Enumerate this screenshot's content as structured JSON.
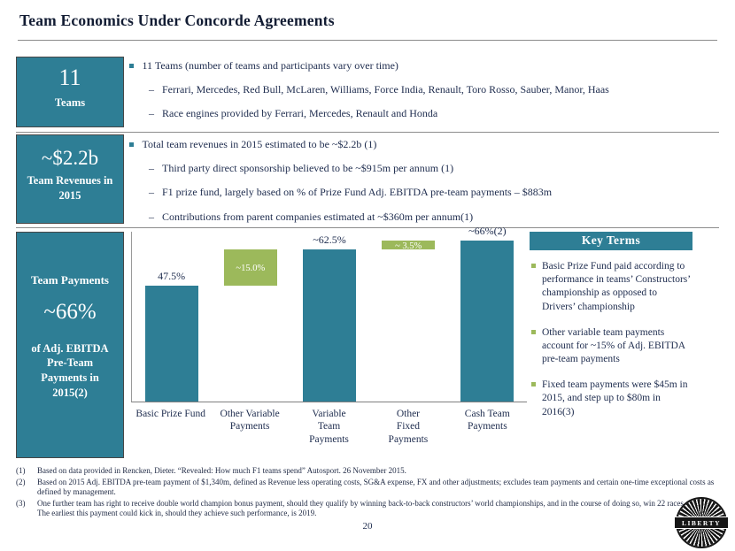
{
  "title": "Team Economics Under Concorde Agreements",
  "page_number": "20",
  "colors": {
    "teal": "#2e7e95",
    "green": "#9cb95b",
    "text": "#1e2c4e"
  },
  "rows": [
    {
      "box": {
        "value": "11",
        "caption": "Teams"
      },
      "bullet": "11 Teams (number of teams and participants vary over time)",
      "subbullets": [
        "Ferrari, Mercedes, Red Bull, McLaren, Williams, Force India, Renault, Toro Rosso, Sauber, Manor, Haas",
        "Race engines provided by Ferrari, Mercedes, Renault and Honda"
      ]
    },
    {
      "box": {
        "value": "~$2.2b",
        "caption": "Team Revenues in 2015"
      },
      "bullet": "Total team revenues in 2015 estimated to be ~$2.2b (1)",
      "subbullets": [
        "Third party direct sponsorship believed to be ~$915m per annum (1)",
        "F1 prize fund, largely based on % of Prize Fund Adj. EBITDA pre-team payments – $883m",
        "Contributions from parent companies estimated at ~$360m per annum(1)"
      ]
    },
    {
      "box": {
        "title": "Team Payments",
        "value": "~66%",
        "caption": "of Adj. EBITDA Pre-Team Payments in 2015(2)"
      }
    }
  ],
  "chart_data": {
    "type": "bar",
    "subtype": "waterfall",
    "ylim": [
      0,
      70
    ],
    "grid": false,
    "categories": [
      "Basic Prize Fund",
      "Other Variable\nPayments",
      "Variable\nTeam\nPayments",
      "Other\nFixed\nPayments",
      "Cash Team\nPayments"
    ],
    "bars": [
      {
        "label": "47.5%",
        "start": 0,
        "value": 47.5,
        "color": "teal",
        "label_pos": "above"
      },
      {
        "label": "~15.0%",
        "start": 47.5,
        "value": 15.0,
        "color": "green",
        "label_pos": "inside"
      },
      {
        "label": "~62.5%",
        "start": 0,
        "value": 62.5,
        "color": "teal",
        "label_pos": "above"
      },
      {
        "label": "~ 3.5%",
        "start": 62.5,
        "value": 3.5,
        "color": "green",
        "label_pos": "inside"
      },
      {
        "label": "~66%(2)",
        "start": 0,
        "value": 66.0,
        "color": "teal",
        "label_pos": "above"
      }
    ]
  },
  "key_terms": {
    "title": "Key Terms",
    "items": [
      "Basic Prize Fund paid according to performance in teams’ Constructors’ championship as opposed to Drivers’ championship",
      "Other variable team payments account for ~15% of Adj. EBITDA pre-team payments",
      "Fixed team payments were $45m in 2015, and step up to $80m in 2016(3)"
    ]
  },
  "footnotes": [
    {
      "num": "(1)",
      "text": "Based on data provided in Rencken, Dieter. “Revealed: How much F1 teams spend” Autosport. 26 November 2015."
    },
    {
      "num": "(2)",
      "text": "Based on 2015 Adj. EBITDA pre-team payment of $1,340m, defined as Revenue less operating costs, SG&A expense, FX and other adjustments; excludes team payments and certain one-time exceptional costs as defined by management."
    },
    {
      "num": "(3)",
      "text": "One further team has right to receive double world champion bonus payment, should they qualify by winning back-to-back constructors’ world championships, and in the course of doing so, win 22 races or more. The earliest this payment could kick in, should they achieve such performance, is 2019."
    }
  ],
  "logo": {
    "text": "LIBERTY"
  }
}
